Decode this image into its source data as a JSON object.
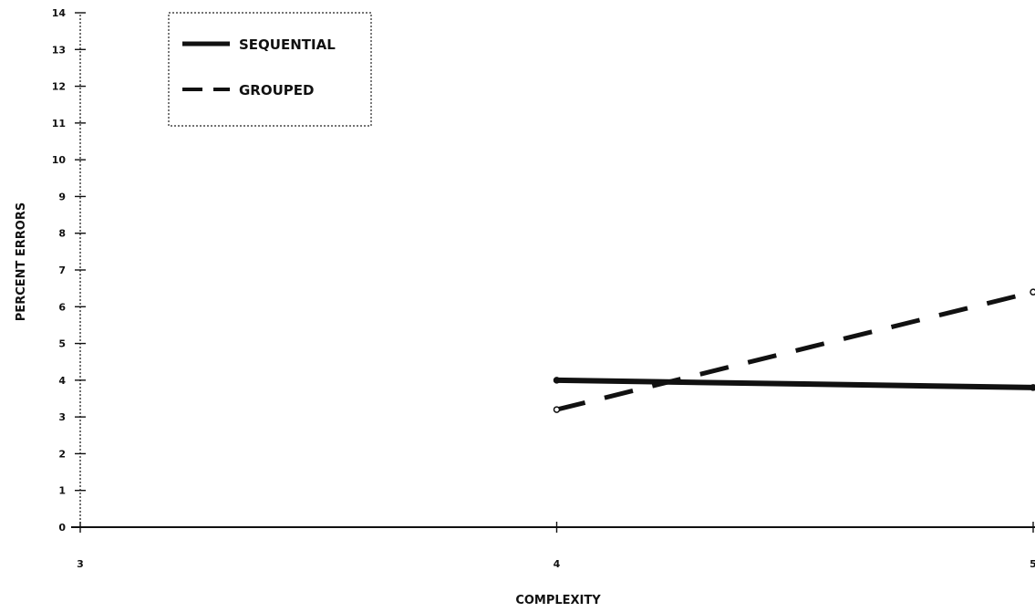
{
  "chart_data": {
    "type": "line",
    "xlabel": "COMPLEXITY",
    "ylabel": "PERCENT ERRORS",
    "x_ticks": [
      "3",
      "4",
      "5"
    ],
    "x_values": [
      3,
      4,
      5
    ],
    "xlim": [
      3,
      5
    ],
    "ylim": [
      0,
      14
    ],
    "y_ticks": [
      "0",
      "1",
      "2",
      "3",
      "4",
      "5",
      "6",
      "7",
      "8",
      "9",
      "10",
      "11",
      "12",
      "13",
      "14"
    ],
    "series": [
      {
        "name": "SEQUENTIAL",
        "style": "solid",
        "x": [
          4,
          5
        ],
        "values": [
          4.0,
          3.8
        ]
      },
      {
        "name": "GROUPED",
        "style": "dashed",
        "x": [
          4,
          5
        ],
        "values": [
          3.2,
          6.4
        ]
      }
    ],
    "legend_position": "top-left",
    "grid": false,
    "colors": {
      "line": "#111111",
      "background": "#ffffff"
    }
  }
}
